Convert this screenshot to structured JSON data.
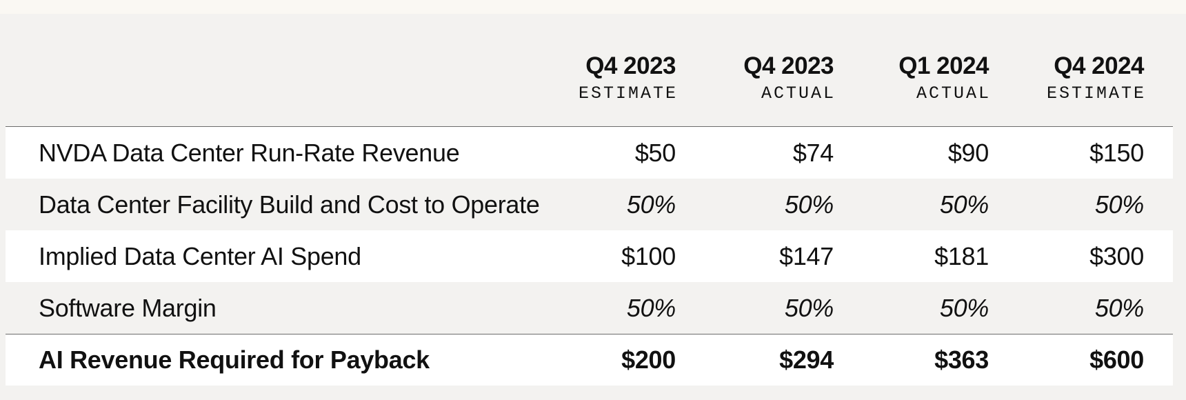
{
  "table": {
    "columns": [
      {
        "period": "Q4 2023",
        "type": "ESTIMATE"
      },
      {
        "period": "Q4 2023",
        "type": "ACTUAL"
      },
      {
        "period": "Q1 2024",
        "type": "ACTUAL"
      },
      {
        "period": "Q4 2024",
        "type": "ESTIMATE"
      }
    ],
    "rows": [
      {
        "label": "NVDA Data Center Run-Rate Revenue",
        "values": [
          "$50",
          "$74",
          "$90",
          "$150"
        ]
      },
      {
        "label": "Data Center Facility Build and Cost to Operate",
        "values": [
          "50%",
          "50%",
          "50%",
          "50%"
        ]
      },
      {
        "label": "Implied Data Center AI Spend",
        "values": [
          "$100",
          "$147",
          "$181",
          "$300"
        ]
      },
      {
        "label": "Software Margin",
        "values": [
          "50%",
          "50%",
          "50%",
          "50%"
        ]
      },
      {
        "label": "AI Revenue Required for Payback",
        "values": [
          "$200",
          "$294",
          "$363",
          "$600"
        ]
      }
    ]
  }
}
